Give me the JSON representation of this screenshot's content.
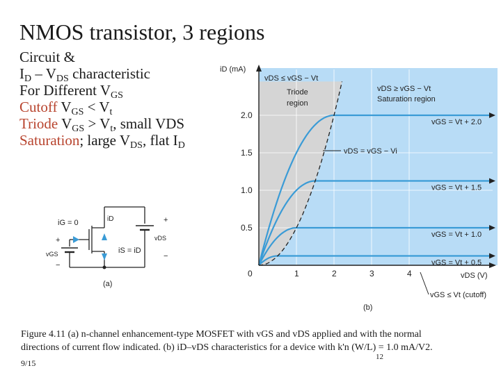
{
  "slide": {
    "title": "NMOS transistor, 3 regions",
    "bullets": {
      "line1": "Circuit &",
      "line2_a": "I",
      "line2_sub1": "D",
      "line2_b": " – V",
      "line2_sub2": "DS",
      "line2_c": " characteristic",
      "line3_a": "For Different V",
      "line3_sub": "GS",
      "line4_red": "Cutoff",
      "line4_a": " V",
      "line4_sub1": "GS",
      "line4_b": " < V",
      "line4_sub2": "t",
      "line5_red": "Triode",
      "line5_a": " V",
      "line5_sub1": "GS",
      "line5_b": " > V",
      "line5_sub2": "t",
      "line5_c": ", small VDS",
      "line6_red": "Saturation",
      "line6_a": "; large V",
      "line6_sub": "DS",
      "line6_b": ", flat I",
      "line6_sub2": "D"
    },
    "caption_line1": "Figure 4.11 (a) n-channel enhancement-type MOSFET with vGS and vDS applied and with the normal",
    "caption_line2": "directions of current flow indicated. (b) iD–vDS characteristics for a device with k'n (W/L) = 1.0 mA/V2.",
    "footer_date": "9/15",
    "page_number": "12"
  },
  "circuit": {
    "ig_label": "iG = 0",
    "is_label": "iS = iD",
    "id_label": "iD",
    "vds_label": "vDS",
    "vgs_label": "vGS",
    "plus1": "+",
    "minus1": "−",
    "plus2": "+",
    "minus2": "−",
    "sublabel": "(a)"
  },
  "chart_data": {
    "type": "line",
    "ylabel": "iD (mA)",
    "xlabel": "vDS (V)",
    "x_ticks": [
      "0",
      "1",
      "2",
      "3",
      "4"
    ],
    "y_ticks": [
      "0.5",
      "1.0",
      "1.5",
      "2.0"
    ],
    "xlim": [
      0,
      6.3
    ],
    "ylim": [
      0,
      2.45
    ],
    "region_labels": {
      "triode": "vDS ≤ vGS − Vt  Triode region",
      "triode_line1": "vDS ≤ vGS − Vt",
      "triode_line2": "Triode",
      "triode_line3": "region",
      "saturation_line1": "vDS ≥ vGS − Vt",
      "saturation_line2": "Saturation region"
    },
    "boundary_label": "vDS = vGS − Vi",
    "cutoff_label": "vGS ≤ Vt (cutoff)",
    "series": [
      {
        "name": "vGS = Vt + 2.0",
        "overdrive": 2.0,
        "isat": 2.0
      },
      {
        "name": "vGS = Vt + 1.5",
        "overdrive": 1.5,
        "isat": 1.125
      },
      {
        "name": "vGS = Vt + 1.0",
        "overdrive": 1.0,
        "isat": 0.5
      },
      {
        "name": "vGS = Vt + 0.5",
        "overdrive": 0.5,
        "isat": 0.125
      }
    ],
    "sublabel": "(b)",
    "colors": {
      "saturation_fill": "#b8dcf6",
      "triode_fill": "#d5d5d5",
      "curve": "#3a9bd6"
    }
  }
}
